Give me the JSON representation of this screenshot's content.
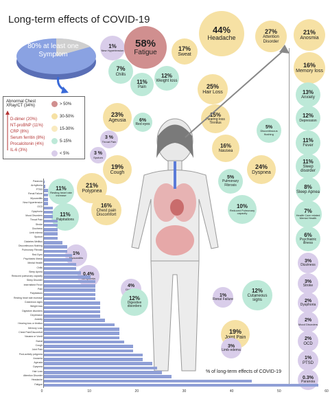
{
  "title": "Long-term effects of COVID-19",
  "pie": {
    "label": "80% at least one Symptom"
  },
  "legend": {
    "header": "Abnormal Chest XRay/CT (34%)",
    "labs": [
      "D-dimer (20%)",
      "NT-proBNP (11%)",
      "CRP (8%)",
      "Serum ferritin (8%)",
      "Procalcitonin (4%)",
      "IL-6 (3%)"
    ],
    "keys": [
      {
        "label": "> 50%",
        "color": "#d08f8f"
      },
      {
        "label": "30-50%",
        "color": "#f6e1a4"
      },
      {
        "label": "15-30%",
        "color": "#f6e1a4"
      },
      {
        "label": "5-15%",
        "color": "#bde9d8"
      },
      {
        "label": "< 5%",
        "color": "#d9cdea"
      }
    ]
  },
  "bubbles": [
    {
      "id": "new-hypertension",
      "pct": "1%",
      "label": "New Hypertension"
    },
    {
      "id": "fatigue",
      "pct": "58%",
      "label": "Fatigue"
    },
    {
      "id": "sweat",
      "pct": "17%",
      "label": "Sweat"
    },
    {
      "id": "chills",
      "pct": "7%",
      "label": "Chills"
    },
    {
      "id": "pain",
      "pct": "11%",
      "label": "Pain"
    },
    {
      "id": "weight-loss",
      "pct": "12%",
      "label": "Weight loss"
    },
    {
      "id": "headache",
      "pct": "44%",
      "label": "Headache"
    },
    {
      "id": "attention-disorder",
      "pct": "27%",
      "label": "Attention Disorder"
    },
    {
      "id": "anosmia",
      "pct": "21%",
      "label": "Anosmia"
    },
    {
      "id": "memory-loss",
      "pct": "16%",
      "label": "Memory loss"
    },
    {
      "id": "anxiety",
      "pct": "13%",
      "label": "Anxiety"
    },
    {
      "id": "depression",
      "pct": "12%",
      "label": "Depression"
    },
    {
      "id": "fever",
      "pct": "11%",
      "label": "Fever"
    },
    {
      "id": "sleep-disorder",
      "pct": "11%",
      "label": "Sleep disorder"
    },
    {
      "id": "sleep-apnea",
      "pct": "8%",
      "label": "Sleep Apnea"
    },
    {
      "id": "health-care-mental",
      "pct": "7%",
      "label": "Health Care related Mental Health"
    },
    {
      "id": "psychiatric-illness",
      "pct": "6%",
      "label": "Psychiatric illness"
    },
    {
      "id": "dizziness",
      "pct": "3%",
      "label": "Dizziness"
    },
    {
      "id": "stroke",
      "pct": "3%",
      "label": "Stroke"
    },
    {
      "id": "dysphoria",
      "pct": "2%",
      "label": "Dysphoria"
    },
    {
      "id": "mood-disorders",
      "pct": "2%",
      "label": "Mood Disorders"
    },
    {
      "id": "ocd",
      "pct": "2%",
      "label": "OCD"
    },
    {
      "id": "ptsd",
      "pct": "1%",
      "label": "PTSD"
    },
    {
      "id": "paranoia",
      "pct": "0.3%",
      "label": "Paranoia"
    },
    {
      "id": "hair-loss",
      "pct": "25%",
      "label": "Hair Loss"
    },
    {
      "id": "ageusia",
      "pct": "23%",
      "label": "Ageusia"
    },
    {
      "id": "red-eyes",
      "pct": "6%",
      "label": "Red eyes"
    },
    {
      "id": "hearing-loss",
      "pct": "15%",
      "label": "Hearing loss Tinnitus"
    },
    {
      "id": "discontinuous-flushing",
      "pct": "5%",
      "label": "Discontinuous flushing"
    },
    {
      "id": "throat-pain",
      "pct": "3 %",
      "label": "Throat Pain"
    },
    {
      "id": "sputum",
      "pct": "3 %",
      "label": "Sputum"
    },
    {
      "id": "nausea",
      "pct": "16%",
      "label": "Nausea"
    },
    {
      "id": "dyspnea",
      "pct": "24%",
      "label": "Dyspnea"
    },
    {
      "id": "cough",
      "pct": "19%",
      "label": "Cough"
    },
    {
      "id": "polypnea",
      "pct": "21%",
      "label": "Polypnea"
    },
    {
      "id": "pulmonary-fibrosis",
      "pct": "5%",
      "label": "Pulmonary Fibrosis"
    },
    {
      "id": "resting-heart-rate",
      "pct": "11%",
      "label": "Resting heart rate increase"
    },
    {
      "id": "chest-pain",
      "pct": "16%",
      "label": "Chest pain Discomfort"
    },
    {
      "id": "reduced-pulmonary",
      "pct": "10%",
      "label": "Reduced Pulmonary capacity"
    },
    {
      "id": "palpitations",
      "pct": "11%",
      "label": "Palpitations"
    },
    {
      "id": "myocarditis",
      "pct": "1%",
      "label": "Myocarditis"
    },
    {
      "id": "arrhythmia",
      "pct": "0.4%",
      "label": "Arrhythmia"
    },
    {
      "id": "diabetes-mellitus",
      "pct": "4%",
      "label": "Diabetes Mellitus"
    },
    {
      "id": "renal-failure",
      "pct": "1%",
      "label": "Renal Failure"
    },
    {
      "id": "cutaneous-signs",
      "pct": "12%",
      "label": "Cutaneous signs"
    },
    {
      "id": "digestive-disorders",
      "pct": "12%",
      "label": "Digestive disorders"
    },
    {
      "id": "joint-pain",
      "pct": "19%",
      "label": "Joint Pain"
    },
    {
      "id": "limb-edema",
      "pct": "3%",
      "label": "Limb edema"
    }
  ],
  "chart_data": {
    "type": "bar",
    "orientation": "horizontal",
    "xlabel": "% of long-term effects of COVID-19",
    "xlim": [
      0,
      60
    ],
    "xticks": [
      "0",
      "10",
      "20",
      "30",
      "40",
      "50",
      "60"
    ],
    "categories": [
      "Paranoia",
      "Arrhythmia",
      "PTSD",
      "Renal Failure",
      "Myocarditis",
      "New Hypertension",
      "OCD",
      "Dysphoria",
      "Mood Disorders",
      "Throat Pain",
      "Stroke",
      "Dizziness",
      "Limb edema",
      "Sputum",
      "Diabetes Mellitus",
      "Discontinuous flushing",
      "Pulmonary Fibrosis",
      "Red Eyes",
      "Psychiatric illness",
      "Mental Health",
      "Chills",
      "Sleep Apnea",
      "Reduced pulmonary capacity",
      "Sleep Disorder",
      "Intermittent Fever",
      "Pain",
      "Palpitations",
      "Resting heart rate increase",
      "Cutaneous signs",
      "Weight loss",
      "Digestive disorders",
      "Depression",
      "Anxiety",
      "Hearing loss or tinnitus",
      "Memory Loss",
      "Chest Pain/Discomfort",
      "Nausea or Vomit",
      "Sweat",
      "Cough",
      "Joint Pain",
      "Post-activity polypnea",
      "Anosmia",
      "Ageusia",
      "Dyspnea",
      "Hair Loss",
      "Attention Disorder",
      "Headache",
      "Fatigue"
    ],
    "values": [
      0.3,
      0.4,
      1,
      1,
      1,
      1,
      2,
      2,
      2,
      3,
      3,
      3,
      3,
      3,
      4,
      5,
      5,
      6,
      6,
      7,
      7,
      8,
      10,
      11,
      11,
      11,
      11,
      11,
      12,
      12,
      12,
      12,
      13,
      15,
      16,
      16,
      16,
      17,
      19,
      19,
      21,
      21,
      23,
      24,
      25,
      27,
      44,
      58
    ]
  }
}
